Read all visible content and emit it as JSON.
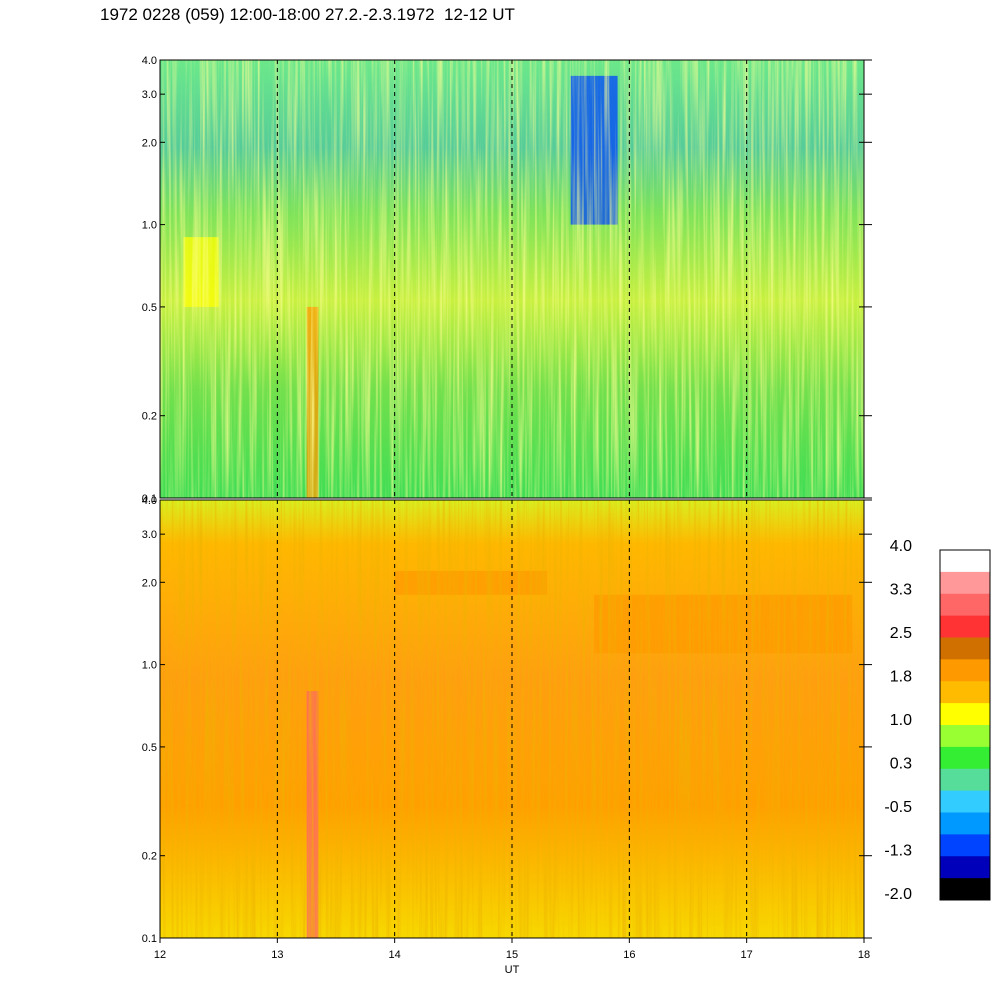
{
  "title": "1972 0228 (059) 12:00-18:00 27.2.-2.3.1972  12-12 UT",
  "chart_data": [
    {
      "type": "heatmap",
      "panel": "upper",
      "xlim": [
        12,
        18
      ],
      "ylim": [
        0.1,
        4.0
      ],
      "yscale": "log",
      "x_ticks": [
        "12",
        "13",
        "14",
        "15",
        "16",
        "17",
        "18"
      ],
      "y_ticks": [
        "0.1",
        "0.2",
        "0.5",
        "1.0",
        "2.0",
        "3.0",
        "4.0"
      ],
      "grid_x_dashed": [
        13,
        14,
        15,
        16,
        17
      ],
      "dominant_level_range": [
        -0.5,
        1.0
      ],
      "features": [
        {
          "x": [
            15.5,
            15.9
          ],
          "y": [
            1.0,
            3.5
          ],
          "level": -1.3
        },
        {
          "x": [
            13.25,
            13.35
          ],
          "y": [
            0.1,
            0.5
          ],
          "level": 1.8
        },
        {
          "x": [
            12.2,
            12.5
          ],
          "y": [
            0.5,
            0.9
          ],
          "level": 1.0
        }
      ]
    },
    {
      "type": "heatmap",
      "panel": "lower",
      "xlim": [
        12,
        18
      ],
      "ylim": [
        0.1,
        4.0
      ],
      "yscale": "log",
      "xlabel": "UT",
      "x_ticks": [
        "12",
        "13",
        "14",
        "15",
        "16",
        "17",
        "18"
      ],
      "y_ticks": [
        "0.1",
        "0.2",
        "0.5",
        "1.0",
        "2.0",
        "3.0",
        "4.0"
      ],
      "grid_x_dashed": [
        13,
        14,
        15,
        16,
        17
      ],
      "dominant_level_range": [
        1.0,
        2.5
      ],
      "features": [
        {
          "x": [
            13.25,
            13.35
          ],
          "y": [
            0.1,
            0.8
          ],
          "level": 3.3
        },
        {
          "x": [
            14.0,
            15.3
          ],
          "y": [
            1.8,
            2.2
          ],
          "level": 1.8
        },
        {
          "x": [
            15.7,
            17.9
          ],
          "y": [
            1.1,
            1.8
          ],
          "level": 1.8
        }
      ]
    }
  ],
  "colorbar": {
    "labels": [
      "4.0",
      "3.3",
      "2.5",
      "1.8",
      "1.0",
      "0.3",
      "-0.5",
      "-1.3",
      "-2.0"
    ],
    "colors": [
      "#ffffff",
      "#ff9999",
      "#ff6666",
      "#ff3333",
      "#d07000",
      "#ff9900",
      "#ffbb00",
      "#ffff00",
      "#99ff33",
      "#33ee33",
      "#55dd99",
      "#33ccff",
      "#0099ff",
      "#0044ff",
      "#0000bb",
      "#000000"
    ]
  }
}
